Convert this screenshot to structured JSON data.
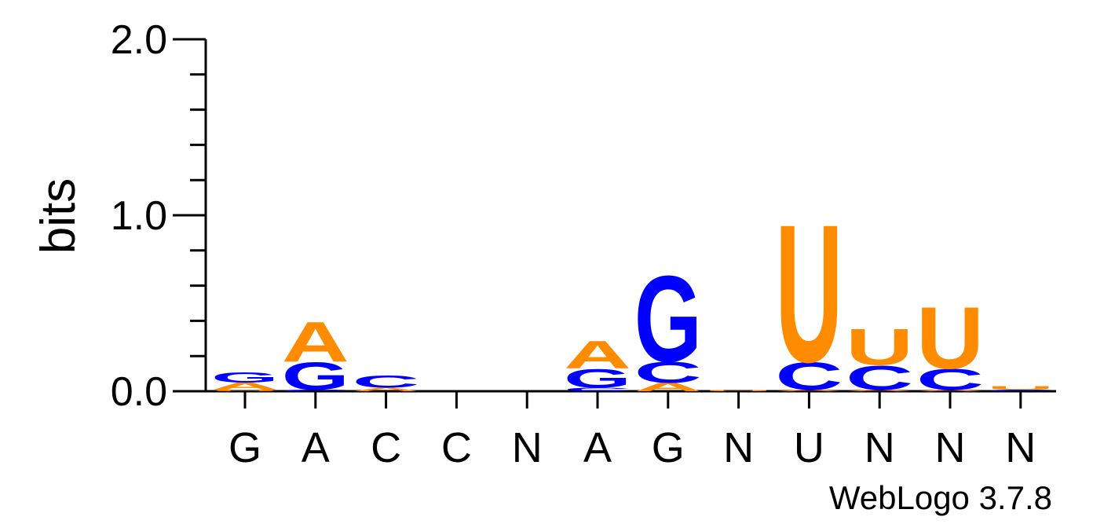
{
  "chart_data": {
    "type": "logo",
    "ylabel": "bits",
    "credit": "WebLogo 3.7.8",
    "categories": [
      "G",
      "A",
      "C",
      "C",
      "N",
      "A",
      "G",
      "N",
      "U",
      "N",
      "N",
      "N"
    ],
    "ylim": [
      0,
      2
    ],
    "yticks": [
      {
        "value": 0,
        "label": "0.0"
      },
      {
        "value": 1,
        "label": "1.0"
      },
      {
        "value": 2,
        "label": "2.0"
      }
    ],
    "minor_yticks": [
      0.2,
      0.4,
      0.6,
      0.8,
      1.2,
      1.4,
      1.6,
      1.8
    ],
    "letter_colors": {
      "A": "#ff8c00",
      "C": "#0000ff",
      "G": "#0000ff",
      "U": "#ff8c00"
    },
    "stacks": [
      [
        {
          "letter": "U",
          "value": 0.01
        },
        {
          "letter": "A",
          "value": 0.04
        },
        {
          "letter": "G",
          "value": 0.06
        }
      ],
      [
        {
          "letter": "C",
          "value": 0.01
        },
        {
          "letter": "G",
          "value": 0.16
        },
        {
          "letter": "A",
          "value": 0.23
        }
      ],
      [
        {
          "letter": "A",
          "value": 0.02
        },
        {
          "letter": "C",
          "value": 0.07
        }
      ],
      [],
      [],
      [
        {
          "letter": "C",
          "value": 0.02
        },
        {
          "letter": "G",
          "value": 0.11
        },
        {
          "letter": "A",
          "value": 0.16
        }
      ],
      [
        {
          "letter": "A",
          "value": 0.05
        },
        {
          "letter": "C",
          "value": 0.12
        },
        {
          "letter": "G",
          "value": 0.5
        }
      ],
      [
        {
          "letter": "U",
          "value": 0.005
        }
      ],
      [
        {
          "letter": "A",
          "value": 0.01
        },
        {
          "letter": "C",
          "value": 0.16
        },
        {
          "letter": "U",
          "value": 0.8
        }
      ],
      [
        {
          "letter": "A",
          "value": 0.01
        },
        {
          "letter": "C",
          "value": 0.14
        },
        {
          "letter": "U",
          "value": 0.21
        }
      ],
      [
        {
          "letter": "A",
          "value": 0.01
        },
        {
          "letter": "C",
          "value": 0.12
        },
        {
          "letter": "U",
          "value": 0.36
        }
      ],
      [
        {
          "letter": "C",
          "value": 0.01
        },
        {
          "letter": "U",
          "value": 0.02
        }
      ]
    ]
  }
}
